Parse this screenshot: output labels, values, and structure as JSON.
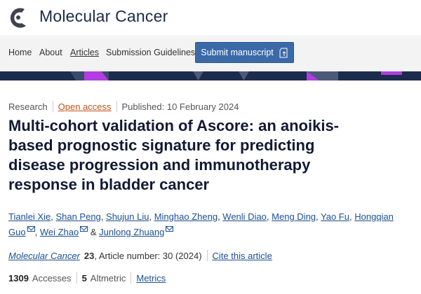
{
  "header": {
    "brand": "Molecular Cancer"
  },
  "nav": {
    "items": [
      "Home",
      "About",
      "Articles",
      "Submission Guidelines"
    ],
    "active": "Articles",
    "submit_label": "Submit manuscript"
  },
  "colors": {
    "navy": "#1c2c4c",
    "accent_purple": "#b23de0",
    "button": "#3b6aa8",
    "link": "#1d4f91",
    "open_access": "#c4501b"
  },
  "article": {
    "type": "Research",
    "access": "Open access",
    "published": "Published: 10 February 2024",
    "title": "Multi-cohort validation of Ascore: an anoikis-based prognostic signature for predicting disease progression and immunotherapy response in bladder cancer",
    "authors": [
      "Tianlei Xie",
      "Shan Peng",
      "Shujun Liu",
      "Minghao Zheng",
      "Wenli Diao",
      "Meng Ding",
      "Yao Fu",
      "Hongqian Guo",
      "Wei Zhao",
      "Junlong Zhuang"
    ],
    "journal": "Molecular Cancer",
    "volume": "23",
    "article_number": ", Article number: 30 (2024)",
    "cite": "Cite this article",
    "accesses": "1309",
    "accesses_label": "Accesses",
    "altmetric": "5",
    "altmetric_label": "Altmetric",
    "metrics": "Metrics"
  }
}
